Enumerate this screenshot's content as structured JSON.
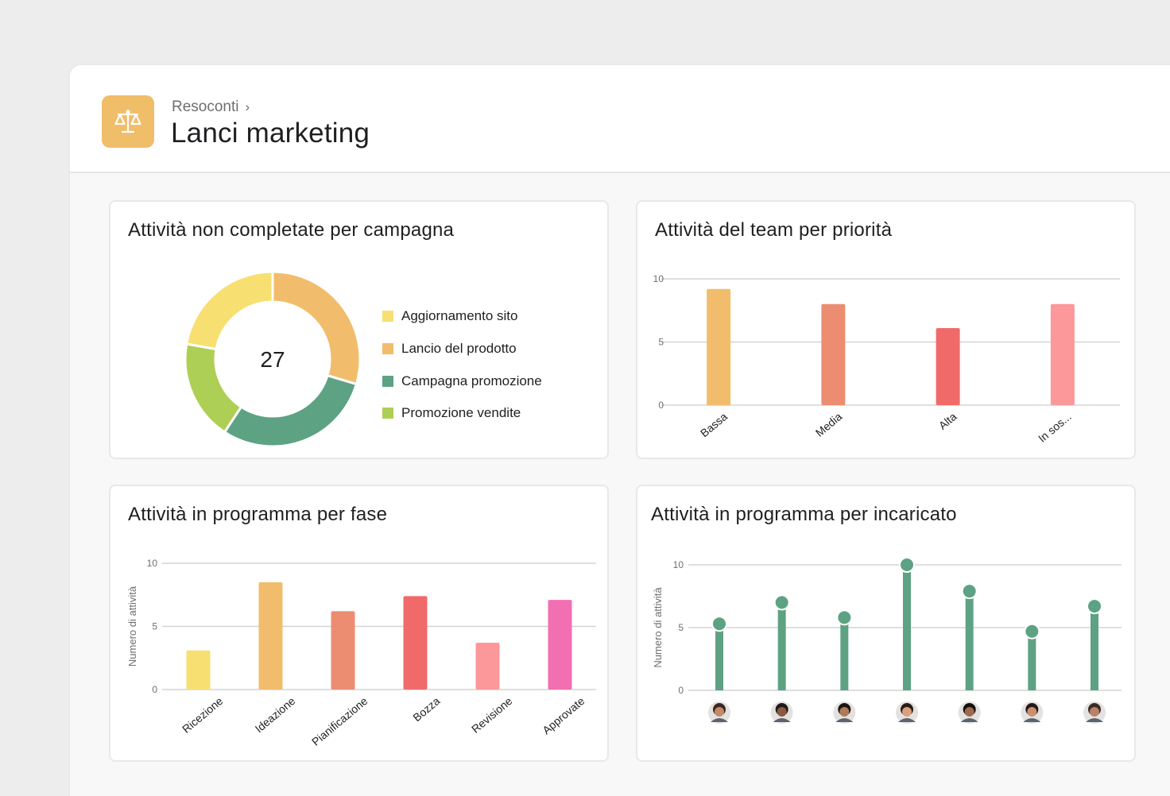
{
  "header": {
    "breadcrumb": "Resoconti",
    "breadcrumb_chevron": "›",
    "title": "Lanci marketing",
    "icon": "scale-icon",
    "icon_color": "#f0bd69"
  },
  "cards": {
    "donut": {
      "title": "Attività non completate per campagna",
      "center_value": "27",
      "chart_data": {
        "type": "pie",
        "title": "Attività non completate per campagna",
        "total": 27,
        "slices": [
          {
            "label": "Aggiornamento sito",
            "value": 6,
            "color": "#f8df72"
          },
          {
            "label": "Lancio del prodotto",
            "value": 8,
            "color": "#f1bd6c"
          },
          {
            "label": "Campagna promozione",
            "value": 8,
            "color": "#5da283"
          },
          {
            "label": "Promozione vendite",
            "value": 5,
            "color": "#aecf55"
          }
        ],
        "draw_order": [
          1,
          2,
          3,
          0
        ]
      }
    },
    "priority": {
      "title": "Attività del team per priorità",
      "chart_data": {
        "type": "bar",
        "title": "Attività del team per priorità",
        "categories": [
          "Bassa",
          "Media",
          "Alta",
          "In sos..."
        ],
        "values": [
          9.2,
          8,
          6.1,
          8
        ],
        "colors": [
          "#f1bd6c",
          "#ec8d71",
          "#f06a6a",
          "#fc979a"
        ],
        "ylim": [
          0,
          10
        ],
        "yticks": [
          "0",
          "5",
          "10"
        ]
      }
    },
    "phase": {
      "title": "Attività in programma per fase",
      "chart_data": {
        "type": "bar",
        "title": "Attività in programma per fase",
        "ylabel": "Numero di attività",
        "categories": [
          "Ricezione",
          "Ideazione",
          "Pianificazione",
          "Bozza",
          "Revisione",
          "Approvate"
        ],
        "values": [
          3.1,
          8.5,
          6.2,
          7.4,
          3.7,
          7.1
        ],
        "colors": [
          "#f8df72",
          "#f1bd6c",
          "#ec8d71",
          "#f06a6a",
          "#fc979a",
          "#f26fb2"
        ],
        "ylim": [
          0,
          10
        ],
        "yticks": [
          "0",
          "5",
          "10"
        ]
      }
    },
    "assignee": {
      "title": "Attività in programma per incaricato",
      "chart_data": {
        "type": "line",
        "title": "Attività in programma per incaricato",
        "ylabel": "Numero di attività",
        "categories": [
          "",
          "",
          "",
          "",
          "",
          "",
          ""
        ],
        "values": [
          5.3,
          7.0,
          5.8,
          10,
          7.9,
          4.7,
          6.7
        ],
        "color": "#5da283",
        "ylim": [
          0,
          10
        ],
        "yticks": [
          "0",
          "5",
          "10"
        ],
        "avatars": [
          "avatar-1",
          "avatar-2",
          "avatar-3",
          "avatar-4",
          "avatar-5",
          "avatar-6",
          "avatar-7"
        ]
      }
    }
  }
}
